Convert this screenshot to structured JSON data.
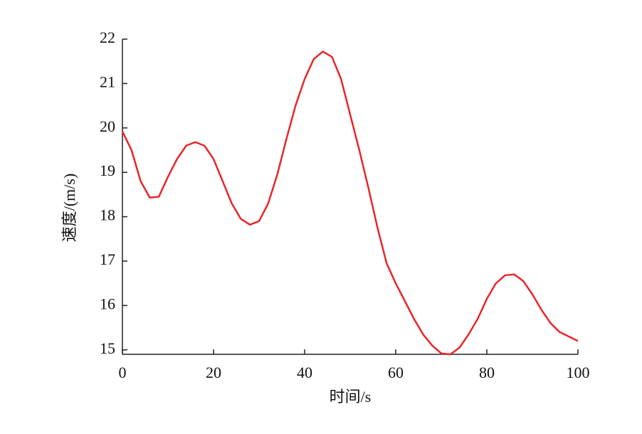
{
  "chart_data": {
    "type": "line",
    "x_label": "时间/s",
    "y_label": "速度/(m/s)",
    "color": "#e8262a",
    "x": [
      0,
      2,
      4,
      6,
      8,
      10,
      12,
      14,
      16,
      18,
      20,
      22,
      24,
      26,
      28,
      30,
      32,
      34,
      36,
      38,
      40,
      42,
      44,
      46,
      48,
      50,
      52,
      54,
      56,
      58,
      60,
      62,
      64,
      66,
      68,
      70,
      72,
      74,
      76,
      78,
      80,
      82,
      84,
      86,
      88,
      90,
      92,
      94,
      96,
      98,
      100
    ],
    "values": [
      19.92,
      19.5,
      18.8,
      18.43,
      18.45,
      18.9,
      19.3,
      19.6,
      19.68,
      19.6,
      19.3,
      18.8,
      18.3,
      17.95,
      17.82,
      17.9,
      18.3,
      18.95,
      19.75,
      20.5,
      21.1,
      21.55,
      21.72,
      21.6,
      21.1,
      20.3,
      19.5,
      18.65,
      17.75,
      16.95,
      16.5,
      16.1,
      15.7,
      15.35,
      15.1,
      14.92,
      14.9,
      15.05,
      15.35,
      15.7,
      16.15,
      16.5,
      16.68,
      16.7,
      16.55,
      16.25,
      15.9,
      15.6,
      15.4,
      15.3,
      15.2
    ],
    "xlim": [
      0,
      100
    ],
    "xticks": [
      0,
      20,
      40,
      60,
      80,
      100
    ],
    "ylim": [
      14.9,
      22
    ],
    "yticks": [
      15,
      16,
      17,
      18,
      19,
      20,
      21,
      22
    ]
  }
}
